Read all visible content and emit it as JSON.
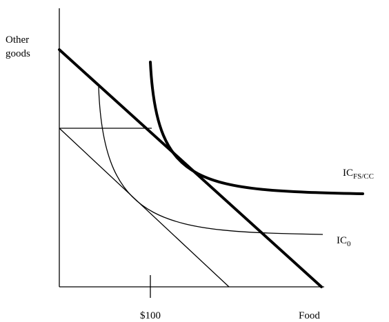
{
  "axes": {
    "y_label_line1": "Other",
    "y_label_line2": "goods",
    "x_label": "Food",
    "x_tick_label": "$100"
  },
  "curves": {
    "ic_fscc_main": "IC",
    "ic_fscc_sub": "FS/CC",
    "ic0_main": "IC",
    "ic0_sub": "0"
  },
  "colors": {
    "line": "#000000",
    "background": "#ffffff"
  }
}
